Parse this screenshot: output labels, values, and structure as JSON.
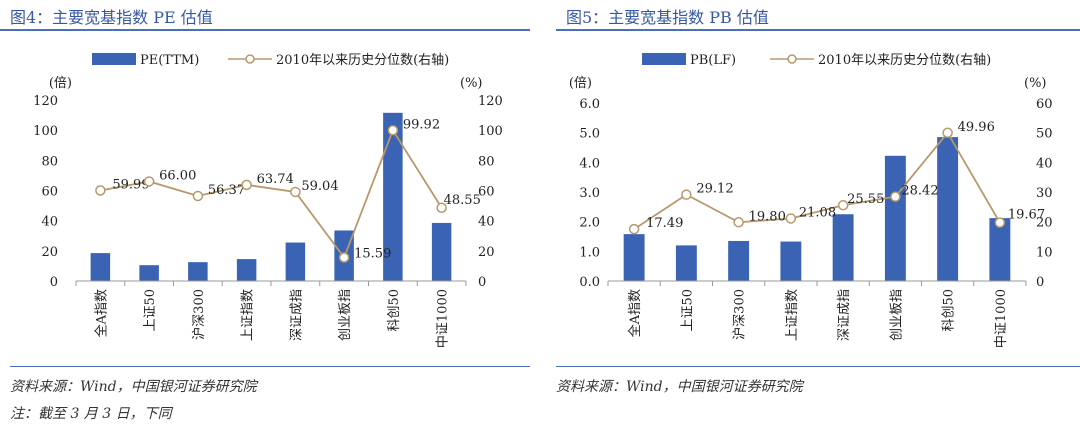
{
  "panels": [
    {
      "title": "图4：主要宽基指数 PE 估值",
      "source": "资料来源：Wind，中国银河证券研究院",
      "note": "注：截至 3 月 3 日，下同"
    },
    {
      "title": "图5：主要宽基指数 PB 估值",
      "source": "资料来源：Wind，中国银河证券研究院",
      "note": ""
    }
  ],
  "chart_data": [
    {
      "type": "bar",
      "categories": [
        "全A指数",
        "上证50",
        "沪深300",
        "上证指数",
        "深证成指",
        "创业板指",
        "科创50",
        "中证1000"
      ],
      "series": [
        {
          "name": "PE(TTM)",
          "kind": "bar",
          "axis": "left",
          "values": [
            18.5,
            10.5,
            12.5,
            14.5,
            25.5,
            33.5,
            111.5,
            38.5
          ],
          "color": "#3a63b4"
        },
        {
          "name": "2010年以来历史分位数(右轴)",
          "kind": "line",
          "axis": "right",
          "values": [
            59.99,
            66.0,
            56.37,
            63.74,
            59.04,
            15.59,
            99.92,
            48.55
          ],
          "labels": [
            "59.99",
            "66.00",
            "56.37",
            "63.74",
            "59.04",
            "15.59",
            "99.92",
            "48.55"
          ],
          "color": "#b8986b"
        }
      ],
      "left_axis": {
        "label": "(倍)",
        "ylim": [
          0,
          120
        ],
        "ticks": [
          "0",
          "20",
          "40",
          "60",
          "80",
          "100",
          "120"
        ]
      },
      "right_axis": {
        "label": "(%)",
        "ylim": [
          0,
          120
        ],
        "ticks": [
          "0",
          "20",
          "40",
          "60",
          "80",
          "100",
          "120"
        ]
      },
      "legend_position": "top"
    },
    {
      "type": "bar",
      "categories": [
        "全A指数",
        "上证50",
        "沪深300",
        "上证指数",
        "深证成指",
        "创业板指",
        "科创50",
        "中证1000"
      ],
      "series": [
        {
          "name": "PB(LF)",
          "kind": "bar",
          "axis": "left",
          "values": [
            1.58,
            1.2,
            1.35,
            1.33,
            2.25,
            4.22,
            4.85,
            2.12
          ],
          "color": "#3a63b4"
        },
        {
          "name": "2010年以来历史分位数(右轴)",
          "kind": "line",
          "axis": "right",
          "values": [
            17.49,
            29.12,
            19.8,
            21.08,
            25.55,
            28.42,
            49.96,
            19.67
          ],
          "labels": [
            "17.49",
            "29.12",
            "19.80",
            "21.08",
            "25.55",
            "28.42",
            "49.96",
            "19.67"
          ],
          "color": "#b8986b"
        }
      ],
      "left_axis": {
        "label": "(倍)",
        "ylim": [
          0,
          6
        ],
        "ticks": [
          "0.0",
          "1.0",
          "2.0",
          "3.0",
          "4.0",
          "5.0",
          "6.0"
        ]
      },
      "right_axis": {
        "label": "(%)",
        "ylim": [
          0,
          60
        ],
        "ticks": [
          "0",
          "10",
          "20",
          "30",
          "40",
          "50",
          "60"
        ]
      },
      "legend_position": "top"
    }
  ]
}
